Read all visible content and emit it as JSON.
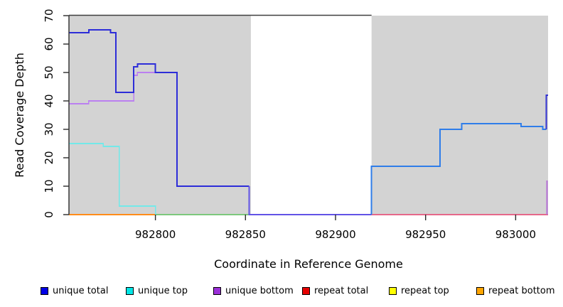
{
  "chart_data": {
    "type": "line",
    "subtype": "step-coverage-plot",
    "title": "",
    "xlabel": "Coordinate in Reference Genome",
    "ylabel": "Read Coverage Depth",
    "xlim": [
      982752,
      983018
    ],
    "ylim": [
      0,
      70
    ],
    "xticks": [
      982800,
      982850,
      982900,
      982950,
      983000
    ],
    "yticks": [
      0,
      10,
      20,
      30,
      40,
      50,
      60,
      70
    ],
    "grid": false,
    "colors": {
      "shade": "#d3d3d3",
      "axis": "#2b2b2b",
      "top_line": "#3f3f3f"
    },
    "shaded_regions": [
      {
        "x0": 982752,
        "x1": 982853
      },
      {
        "x0": 982920,
        "x1": 983018
      }
    ],
    "top_line": {
      "y": 70,
      "x0": 982752,
      "x1": 982920
    },
    "series": [
      {
        "name": "repeat-bottom-zero-line",
        "color": "#ff8c1a",
        "width": 1.8,
        "points": [
          [
            982752,
            0
          ],
          [
            982800,
            0
          ]
        ]
      },
      {
        "name": "zero-line-green-overlap",
        "color": "#7dc87d",
        "width": 1.6,
        "points": [
          [
            982800,
            0
          ],
          [
            982853,
            0
          ]
        ]
      },
      {
        "name": "zero-line-pink-overlap",
        "color": "#e5688a",
        "width": 1.6,
        "points": [
          [
            982920,
            0
          ],
          [
            983018,
            0
          ]
        ]
      },
      {
        "name": "unique-top",
        "color": "#72e9e9",
        "width": 1.6,
        "points": [
          [
            982752,
            25
          ],
          [
            982771,
            25
          ],
          [
            982771,
            24
          ],
          [
            982780,
            24
          ],
          [
            982780,
            3
          ],
          [
            982800,
            3
          ],
          [
            982800,
            0
          ]
        ]
      },
      {
        "name": "unique-bottom",
        "color": "#bb80f0",
        "width": 1.6,
        "points": [
          [
            982752,
            39
          ],
          [
            982763,
            39
          ],
          [
            982763,
            40
          ],
          [
            982788,
            40
          ],
          [
            982788,
            49
          ],
          [
            982790,
            49
          ],
          [
            982790,
            50
          ],
          [
            982801,
            50
          ]
        ]
      },
      {
        "name": "unique-total-left",
        "color": "#2d2dd8",
        "width": 2,
        "points": [
          [
            982752,
            64
          ],
          [
            982763,
            64
          ],
          [
            982763,
            65
          ],
          [
            982775,
            65
          ],
          [
            982775,
            64
          ],
          [
            982778,
            64
          ],
          [
            982778,
            43
          ],
          [
            982788,
            43
          ],
          [
            982788,
            52
          ],
          [
            982790,
            52
          ],
          [
            982790,
            53
          ],
          [
            982800,
            53
          ],
          [
            982800,
            50
          ],
          [
            982812,
            50
          ],
          [
            982812,
            10
          ],
          [
            982852,
            10
          ]
        ]
      },
      {
        "name": "zero-line-violet-overlap",
        "color": "#6253e6",
        "width": 2,
        "points": [
          [
            982852,
            10
          ],
          [
            982852,
            0
          ],
          [
            982920,
            0
          ]
        ]
      },
      {
        "name": "unique-total-right",
        "color": "#2f7de9",
        "width": 2,
        "points": [
          [
            982920,
            0
          ],
          [
            982920,
            17
          ],
          [
            982958,
            17
          ],
          [
            982958,
            30
          ],
          [
            982970,
            30
          ],
          [
            982970,
            32
          ],
          [
            983003,
            32
          ],
          [
            983003,
            31
          ],
          [
            983015,
            31
          ],
          [
            983015,
            30
          ],
          [
            983017,
            30
          ]
        ]
      },
      {
        "name": "right-edge-spike-blue",
        "color": "#3232d2",
        "width": 2.2,
        "points": [
          [
            983017,
            30
          ],
          [
            983017,
            42
          ],
          [
            983018,
            42
          ]
        ]
      },
      {
        "name": "right-edge-spike-magenta",
        "color": "#b56fd5",
        "width": 2,
        "points": [
          [
            983017.5,
            12
          ],
          [
            983017.5,
            0
          ]
        ]
      }
    ],
    "legend": [
      {
        "label": "unique total",
        "color": "#0000e6"
      },
      {
        "label": "unique top",
        "color": "#00e6e6"
      },
      {
        "label": "unique bottom",
        "color": "#9b30d9"
      },
      {
        "label": "repeat total",
        "color": "#e60000"
      },
      {
        "label": "repeat top",
        "color": "#ffff00"
      },
      {
        "label": "repeat bottom",
        "color": "#ffa500"
      }
    ],
    "legend_position": "bottom"
  }
}
